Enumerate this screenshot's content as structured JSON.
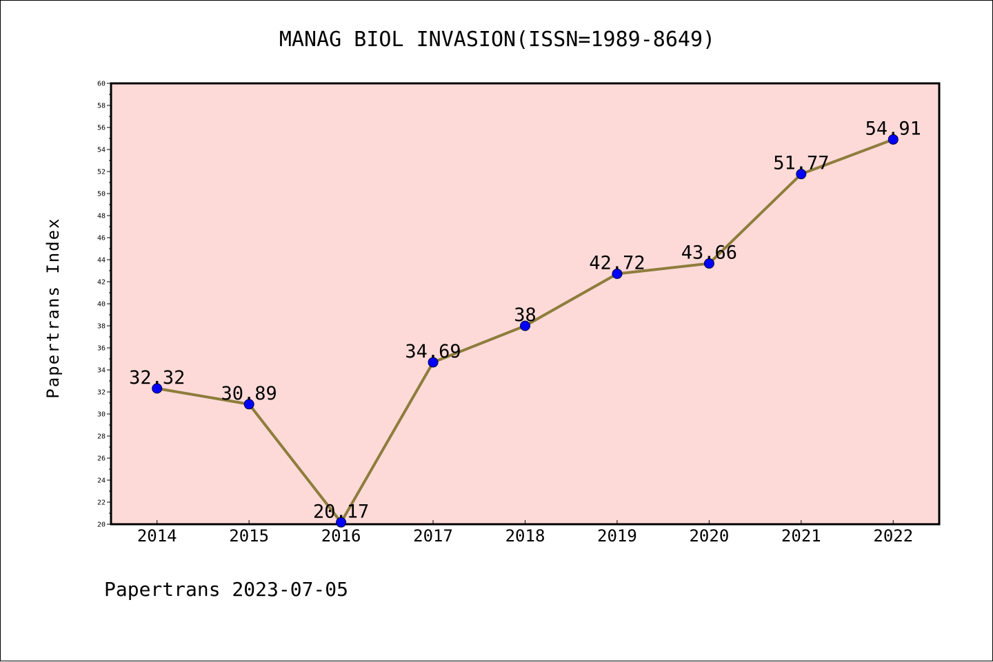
{
  "footer": "Papertrans 2023-07-05",
  "chart_data": {
    "type": "line",
    "title": "MANAG BIOL INVASION(ISSN=1989-8649)",
    "xlabel": "",
    "ylabel": "Papertrans Index",
    "categories": [
      "2014",
      "2015",
      "2016",
      "2017",
      "2018",
      "2019",
      "2020",
      "2021",
      "2022"
    ],
    "values": [
      32.32,
      30.89,
      20.17,
      34.69,
      38,
      42.72,
      43.66,
      51.77,
      54.91
    ],
    "data_labels": [
      "32.32",
      "30.89",
      "20.17",
      "34.69",
      "38",
      "42.72",
      "43.66",
      "51.77",
      "54.91"
    ],
    "ylim": [
      20,
      60
    ],
    "yticks": [
      20,
      22,
      24,
      26,
      28,
      30,
      32,
      34,
      36,
      38,
      40,
      42,
      44,
      46,
      48,
      50,
      52,
      54,
      56,
      58,
      60
    ],
    "grid": false,
    "colors": {
      "plot_background": "#fddad8",
      "line": "#8e7d3c",
      "marker": "#0000ff"
    }
  }
}
